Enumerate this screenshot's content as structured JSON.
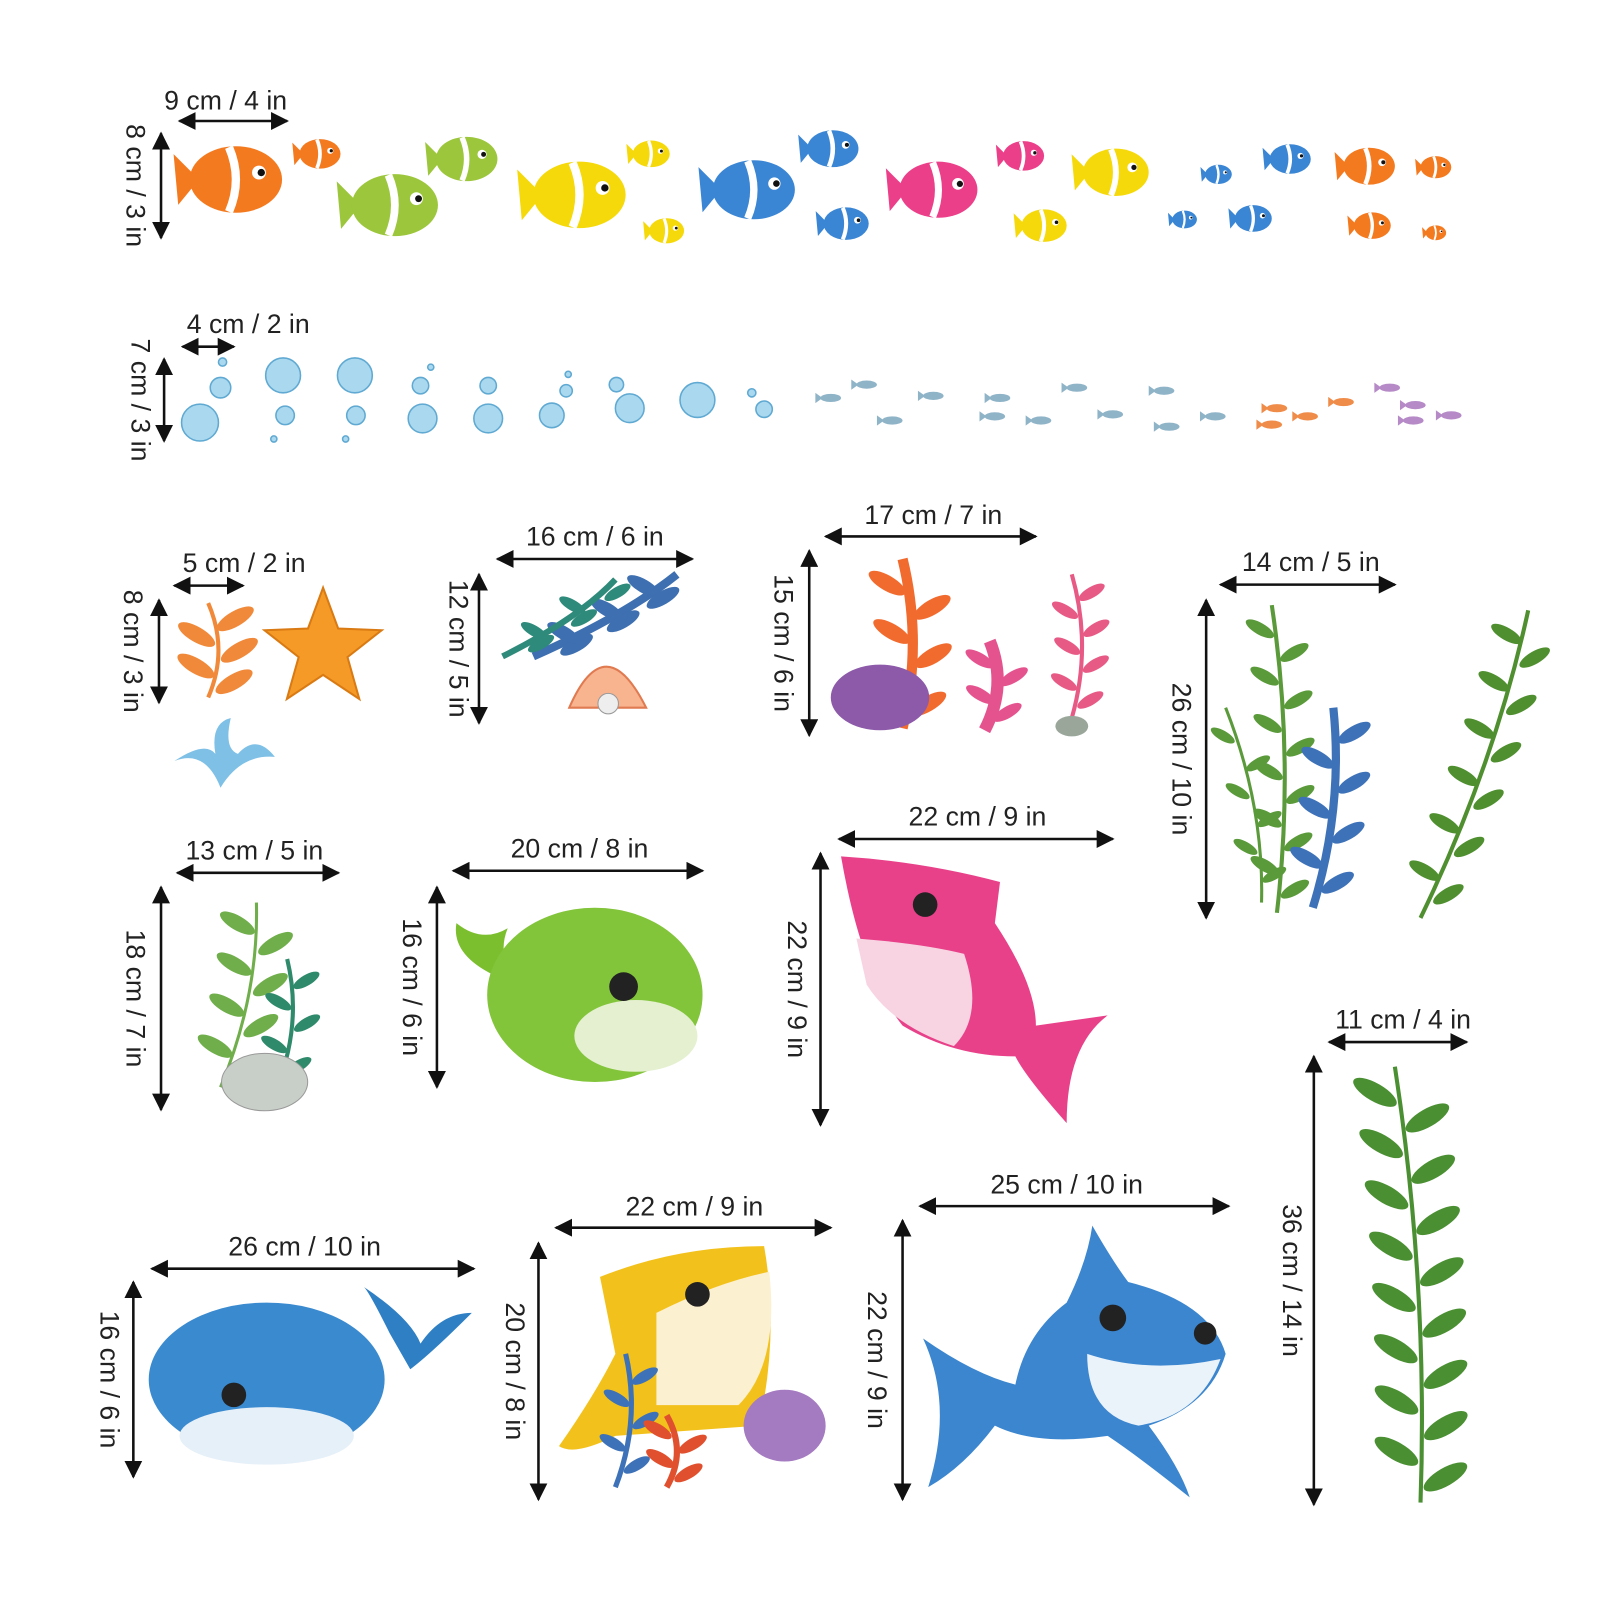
{
  "stickers": [
    {
      "width": "9 cm / 4 in",
      "height": "8 cm / 3 in"
    },
    {
      "width": "4 cm / 2 in",
      "height": "7 cm / 3 in"
    },
    {
      "width": "5 cm / 2 in",
      "height": "8 cm / 3 in"
    },
    {
      "width": "16 cm / 6 in",
      "height": "12 cm / 5 in"
    },
    {
      "width": "17 cm / 7 in",
      "height": "15 cm / 6 in"
    },
    {
      "width": "14 cm / 5 in",
      "height": "26 cm / 10 in"
    },
    {
      "width": "13 cm / 5 in",
      "height": "18 cm / 7 in"
    },
    {
      "width": "20 cm / 8 in",
      "height": "16 cm / 6 in"
    },
    {
      "width": "22 cm / 9 in",
      "height": "22 cm / 9 in"
    },
    {
      "width": "11 cm / 4 in",
      "height": "36 cm / 14 in"
    },
    {
      "width": "26 cm / 10 in",
      "height": "16 cm / 6 in"
    },
    {
      "width": "22 cm / 9 in",
      "height": "20 cm / 8 in"
    },
    {
      "width": "25 cm / 10 in",
      "height": "22 cm / 9 in"
    }
  ]
}
